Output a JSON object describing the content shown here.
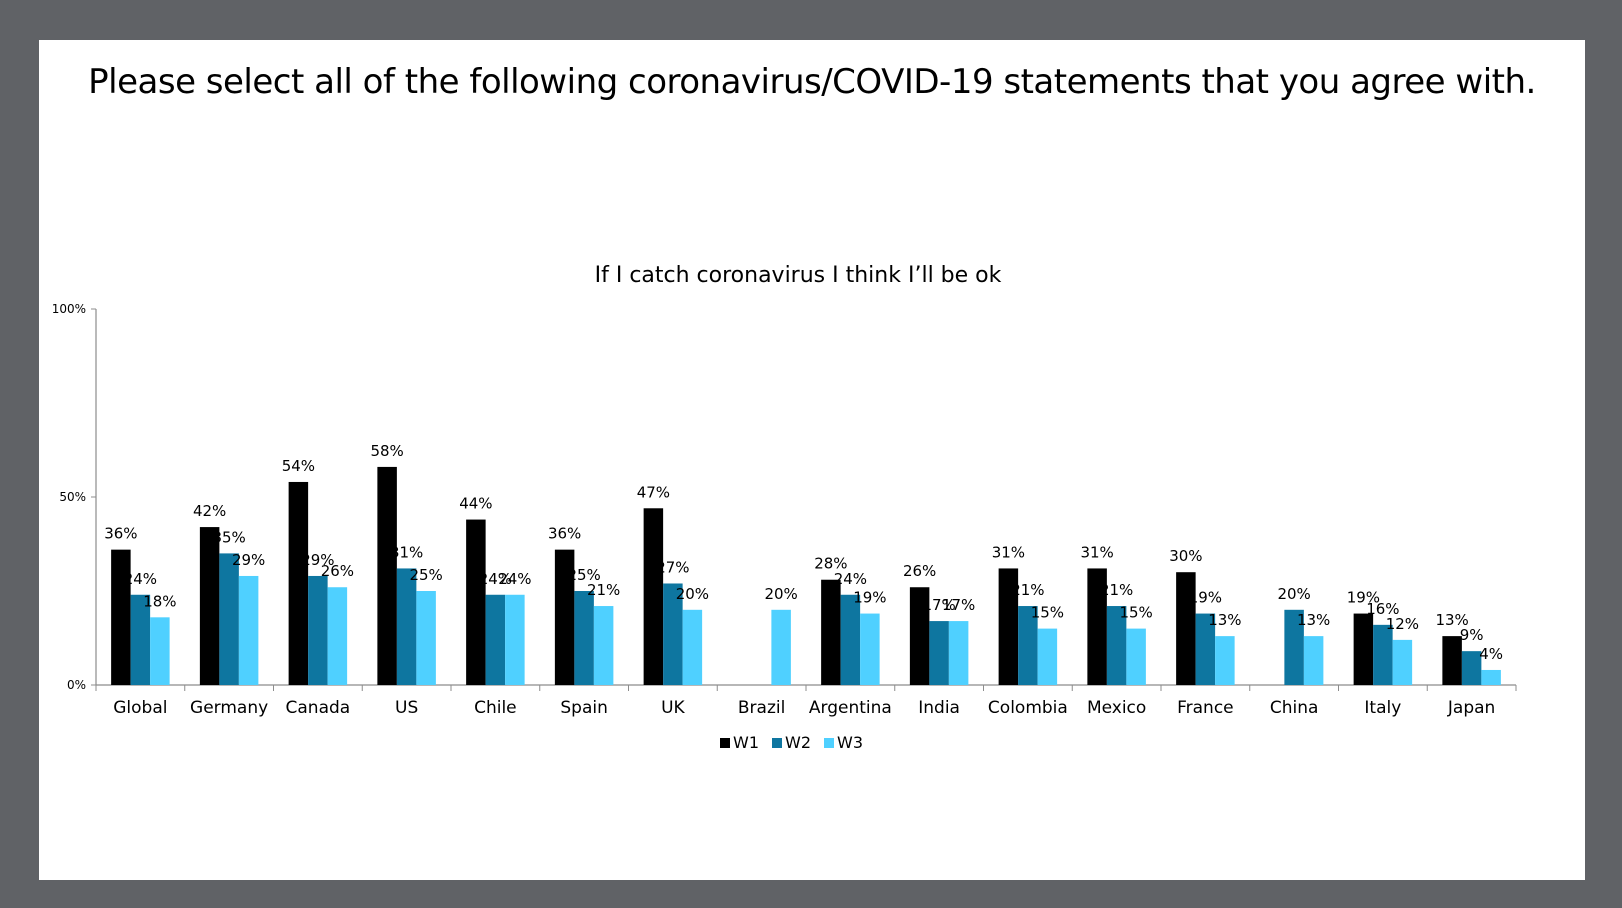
{
  "slide": {
    "title": "Please select all of the following coronavirus/COVID-19 statements that you agree with."
  },
  "chart_data": {
    "type": "bar",
    "title": "If I catch coronavirus I think I’ll be ok",
    "categories": [
      "Global",
      "Germany",
      "Canada",
      "US",
      "Chile",
      "Spain",
      "UK",
      "Brazil",
      "Argentina",
      "India",
      "Colombia",
      "Mexico",
      "France",
      "China",
      "Italy",
      "Japan"
    ],
    "series": [
      {
        "name": "W1",
        "color": "#000000",
        "values": [
          36,
          42,
          54,
          58,
          44,
          36,
          47,
          null,
          28,
          26,
          31,
          31,
          30,
          null,
          19,
          13
        ]
      },
      {
        "name": "W2",
        "color": "#0e76a0",
        "values": [
          24,
          35,
          29,
          31,
          24,
          25,
          27,
          null,
          24,
          17,
          21,
          21,
          19,
          20,
          16,
          9
        ]
      },
      {
        "name": "W3",
        "color": "#4fd0ff",
        "values": [
          18,
          29,
          26,
          25,
          24,
          21,
          20,
          20,
          19,
          17,
          15,
          15,
          13,
          13,
          12,
          4
        ]
      }
    ],
    "yticks": [
      "0%",
      "50%",
      "100%"
    ],
    "ylim": [
      0,
      100
    ],
    "value_suffix": "%",
    "grid": false,
    "legend": "bottom-center"
  }
}
